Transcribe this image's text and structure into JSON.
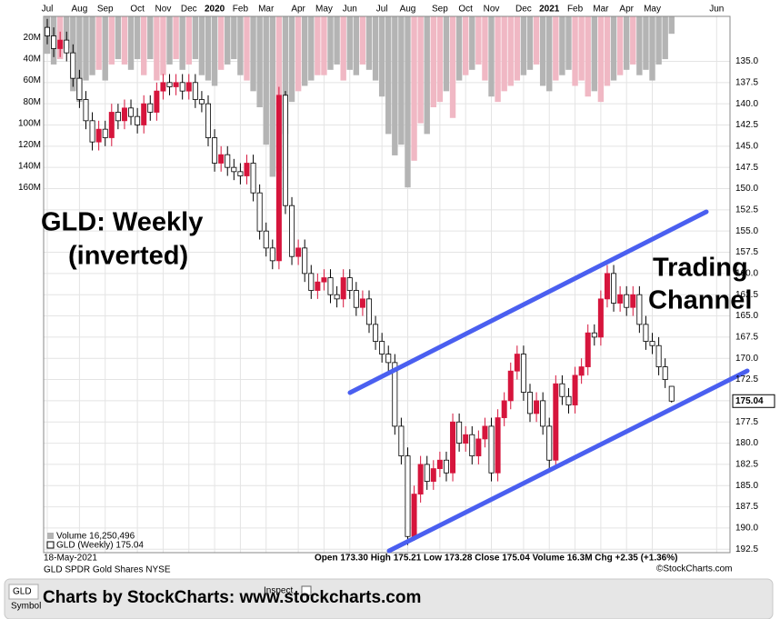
{
  "chart_data": {
    "type": "candlestick",
    "title": "GLD SPDR Gold Shares NYSE",
    "date": "18-May-2021",
    "source": "©StockCharts.com",
    "quote": "Open 173.30 High 175.21 Low 173.28 Close 175.04 Volume 16.3M Chg +2.35 (+1.36%)",
    "legend": [
      "Volume 16,250,496",
      "GLD (Weekly) 175.04"
    ],
    "annotations": [
      "GLD:  Weekly",
      "(inverted)",
      "Trading",
      "Channel"
    ],
    "last_price": 175.04,
    "inverted": true,
    "grid": true,
    "up_color": "#ffffff",
    "down_color": "#d6153c",
    "volume_up_color": "#b4b4b4",
    "volume_down_color": "#f0b8c4",
    "categories": [
      "Jul",
      null,
      null,
      null,
      null,
      "Aug",
      null,
      null,
      null,
      "Sep",
      null,
      null,
      null,
      null,
      "Oct",
      null,
      null,
      null,
      "Nov",
      null,
      null,
      null,
      "Dec",
      null,
      null,
      null,
      "2020",
      null,
      null,
      null,
      "Feb",
      null,
      null,
      null,
      "Mar",
      null,
      null,
      null,
      null,
      "Apr",
      null,
      null,
      null,
      "May",
      null,
      null,
      null,
      "Jun",
      null,
      null,
      null,
      null,
      "Jul",
      null,
      null,
      null,
      "Aug",
      null,
      null,
      null,
      null,
      "Sep",
      null,
      null,
      null,
      "Oct",
      null,
      null,
      null,
      "Nov",
      null,
      null,
      null,
      null,
      "Dec",
      null,
      null,
      null,
      "2021",
      null,
      null,
      null,
      "Feb",
      null,
      null,
      null,
      "Mar",
      null,
      null,
      null,
      "Apr",
      null,
      null,
      null,
      "May",
      null,
      null,
      null,
      null,
      null,
      null,
      null,
      null,
      null,
      "Jun",
      null,
      null
    ],
    "open": [
      131,
      132,
      133.5,
      132.5,
      134,
      137,
      139.5,
      142,
      144.5,
      143,
      144,
      141,
      142,
      140.5,
      141.5,
      142.5,
      140,
      141,
      138.5,
      137.5,
      138,
      137.5,
      138.5,
      137.5,
      139.5,
      140,
      144,
      147,
      146,
      147.5,
      148,
      148.5,
      147,
      150.5,
      155,
      157,
      158.5,
      139,
      152,
      158,
      157,
      160,
      162,
      161,
      160.5,
      162.5,
      163,
      160.5,
      162,
      164,
      163,
      166,
      168,
      169.5,
      170.5,
      178,
      181.5,
      191,
      186,
      182.5,
      184.5,
      183,
      182,
      183.5,
      177.5,
      180,
      179,
      181.5,
      179.5,
      178,
      183.5,
      177,
      175,
      171.5,
      169.5,
      174,
      176.5,
      175,
      178,
      182,
      173,
      174.5,
      175.5,
      172,
      171,
      167,
      167.5,
      163,
      160,
      163.5,
      162.5,
      164,
      162.5,
      166,
      168,
      168.5,
      171,
      173.3,
      null,
      null,
      null,
      null,
      null,
      null,
      null,
      null,
      null
    ],
    "high": [
      133,
      134.5,
      134.5,
      135,
      138,
      140.5,
      143,
      145.5,
      145.5,
      145,
      145,
      143,
      143,
      142.5,
      143.5,
      143.5,
      142,
      142,
      139.5,
      139,
      139,
      139.5,
      139.5,
      140.5,
      141,
      145,
      148,
      148,
      148.5,
      149,
      149.5,
      149.5,
      151.5,
      156,
      158,
      159.5,
      159.5,
      153,
      159,
      159,
      161,
      163,
      163,
      162,
      163.5,
      164,
      164,
      163,
      165,
      165,
      167,
      169,
      170.5,
      171.5,
      179,
      182.5,
      192,
      191.5,
      187,
      185.5,
      185.5,
      184,
      184.5,
      184.5,
      181,
      181,
      182.5,
      182.5,
      180.5,
      184.5,
      184.5,
      178,
      176,
      172.5,
      175,
      177.5,
      177.5,
      179,
      183,
      183,
      175.5,
      176.5,
      176.5,
      173,
      172,
      168.5,
      168.5,
      164,
      164.5,
      164.5,
      165,
      165,
      167,
      169,
      169.5,
      172,
      173.5,
      175.21,
      null,
      null,
      null,
      null,
      null,
      null,
      null,
      null,
      null
    ],
    "low": [
      130,
      131,
      131.5,
      131.5,
      133,
      136,
      138.5,
      141,
      142,
      142,
      140,
      140,
      139.5,
      139.5,
      140.5,
      139,
      139,
      137.5,
      136.5,
      136.5,
      136.5,
      136.5,
      136.5,
      136.5,
      138.5,
      139,
      143,
      145,
      145,
      146.5,
      147,
      146,
      146,
      149.5,
      154,
      156,
      138,
      138.5,
      151,
      156,
      156,
      159,
      160,
      159.5,
      159.5,
      161.5,
      159.5,
      159.5,
      161,
      162,
      162,
      165,
      167,
      168.5,
      169.5,
      177,
      180.5,
      185,
      181.5,
      181.5,
      182,
      181,
      181,
      176.5,
      176.5,
      178,
      178,
      178.5,
      177,
      177,
      176,
      174,
      170.5,
      168.5,
      168.5,
      173,
      174,
      174,
      177,
      172,
      172,
      173.5,
      171,
      170,
      166,
      166,
      162,
      159,
      159,
      161.5,
      161.5,
      161.5,
      161.5,
      165,
      167,
      167.5,
      170,
      173.28,
      null,
      null,
      null,
      null,
      null,
      null,
      null,
      null,
      null
    ],
    "close": [
      132,
      133.5,
      132.5,
      134,
      137,
      139.5,
      142,
      144.5,
      143,
      144,
      141,
      142,
      140.5,
      141.5,
      142.5,
      140,
      141,
      138.5,
      137.5,
      138,
      137.5,
      138.5,
      137.5,
      139.5,
      140,
      144,
      147,
      146,
      147.5,
      148,
      148.5,
      147,
      150.5,
      155,
      157,
      158.5,
      139,
      152,
      158,
      157,
      160,
      162,
      161,
      160.5,
      162.5,
      163,
      160.5,
      162,
      164,
      163,
      166,
      168,
      169.5,
      170.5,
      178,
      181.5,
      191,
      186,
      182.5,
      184.5,
      183,
      182,
      183.5,
      177.5,
      180,
      179,
      181.5,
      179.5,
      178,
      183.5,
      177,
      175,
      171.5,
      169.5,
      174,
      176.5,
      175,
      178,
      182,
      173,
      174.5,
      175.5,
      172,
      171,
      167,
      167.5,
      163,
      160,
      163.5,
      162.5,
      164,
      162.5,
      166,
      168,
      168.5,
      171,
      172.5,
      175.04,
      null,
      null,
      null,
      null,
      null,
      null,
      null,
      null,
      null
    ],
    "ylim": [
      129.7,
      192.9
    ],
    "yticks": [
      {
        "value": 135,
        "label": "135.0"
      },
      137.5,
      {
        "value": 140,
        "label": "140.0"
      },
      142.5,
      {
        "value": 145,
        "label": "145.0"
      },
      147.5,
      {
        "value": 150,
        "label": "150.0"
      },
      152.5,
      {
        "value": 155,
        "label": "155.0"
      },
      157.5,
      {
        "value": 160,
        "label": "160.0"
      },
      162.5,
      {
        "value": 165,
        "label": "165.0"
      },
      167.5,
      {
        "value": 170,
        "label": "170.0"
      },
      172.5,
      {
        "value": 175,
        "label": "175.0"
      },
      177.5,
      {
        "value": 180,
        "label": "180.0"
      },
      182.5,
      {
        "value": 185,
        "label": "185.0"
      },
      187.5,
      {
        "value": 190,
        "label": "190.0"
      },
      192.5
    ],
    "volume": {
      "values": [
        35,
        45,
        40,
        30,
        70,
        80,
        60,
        55,
        50,
        60,
        45,
        40,
        45,
        50,
        40,
        55,
        40,
        60,
        55,
        45,
        40,
        50,
        45,
        40,
        55,
        60,
        65,
        50,
        45,
        40,
        55,
        60,
        70,
        85,
        120,
        150,
        145,
        110,
        80,
        70,
        65,
        60,
        55,
        55,
        50,
        45,
        60,
        50,
        55,
        45,
        50,
        60,
        75,
        110,
        130,
        120,
        160,
        135,
        100,
        110,
        85,
        80,
        70,
        95,
        60,
        55,
        50,
        45,
        60,
        75,
        80,
        70,
        65,
        60,
        55,
        50,
        45,
        65,
        70,
        60,
        55,
        50,
        65,
        60,
        75,
        70,
        80,
        65,
        60,
        55,
        50,
        45,
        55,
        50,
        60,
        45,
        40,
        16.3,
        null,
        null,
        null,
        null,
        null,
        null,
        null,
        null,
        null
      ],
      "ylim": [
        0,
        170
      ],
      "yticks": [
        {
          "value": 20,
          "label": "20M"
        },
        {
          "value": 40,
          "label": "40M"
        },
        {
          "value": 60,
          "label": "60M"
        },
        {
          "value": 80,
          "label": "80M"
        },
        {
          "value": 100,
          "label": "100M"
        },
        {
          "value": 120,
          "label": "120M"
        },
        {
          "value": 140,
          "label": "140M"
        },
        {
          "value": 160,
          "label": "160M"
        }
      ]
    }
  },
  "footer": {
    "symbol": "GLD",
    "symbol_label": "Symbol",
    "inspect": "Inspect",
    "credit": "Charts by StockCharts:  www.stockcharts.com"
  }
}
